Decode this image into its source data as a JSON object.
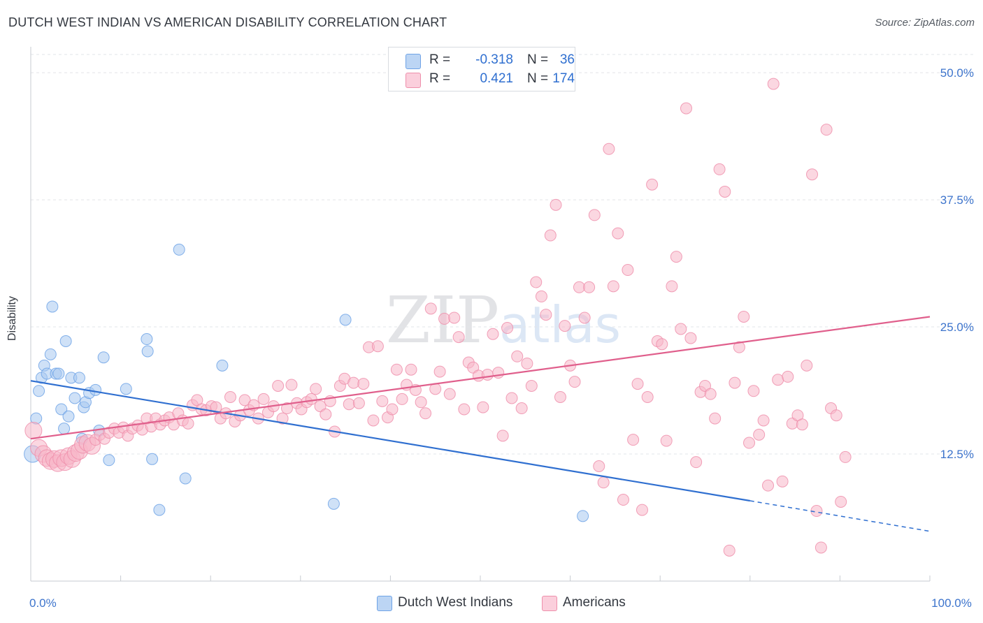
{
  "title": "DUTCH WEST INDIAN VS AMERICAN DISABILITY CORRELATION CHART",
  "source": "Source: ZipAtlas.com",
  "watermark": "ZIPatlas",
  "legend": {
    "rows": [
      {
        "r_label": "R =",
        "r_value": "-0.318",
        "n_label": "N =",
        "n_value": "36",
        "color": "#a8c8f0"
      },
      {
        "r_label": "R =",
        "r_value": "0.421",
        "n_label": "N =",
        "n_value": "174",
        "color": "#f7b6c8"
      }
    ]
  },
  "bottom_legend": [
    {
      "label": "Dutch West Indians",
      "color": "#a8c8f0"
    },
    {
      "label": "Americans",
      "color": "#f7b6c8"
    }
  ],
  "chart_data": {
    "type": "scatter",
    "title": "DUTCH WEST INDIAN VS AMERICAN DISABILITY CORRELATION CHART",
    "xlabel": "",
    "ylabel": "Disability",
    "xlim": [
      0,
      100
    ],
    "ylim": [
      0,
      52
    ],
    "x_tick_labels": [
      {
        "value": 0,
        "label": "0.0%"
      },
      {
        "value": 100,
        "label": "100.0%"
      }
    ],
    "y_tick_labels": [
      {
        "value": 12.5,
        "label": "12.5%"
      },
      {
        "value": 25.0,
        "label": "25.0%"
      },
      {
        "value": 37.5,
        "label": "37.5%"
      },
      {
        "value": 50.0,
        "label": "50.0%"
      }
    ],
    "grid": true,
    "series": [
      {
        "name": "Dutch West Indians",
        "color": "#6fa3e6",
        "fill": "#a8c8f0",
        "trend": {
          "x0": 0,
          "y0": 19.7,
          "x1": 80,
          "y1": 7.9,
          "x_dash_end": 100,
          "y_dash_end": 4.9,
          "color": "#2f6fd0"
        },
        "points": [
          [
            0.2,
            12.5
          ],
          [
            0.6,
            16.0
          ],
          [
            0.9,
            18.7
          ],
          [
            1.2,
            20.0
          ],
          [
            1.5,
            21.2
          ],
          [
            1.8,
            20.4
          ],
          [
            2.2,
            22.3
          ],
          [
            2.4,
            27.0
          ],
          [
            2.8,
            20.4
          ],
          [
            3.1,
            20.4
          ],
          [
            3.4,
            16.9
          ],
          [
            3.7,
            15.0
          ],
          [
            3.9,
            23.6
          ],
          [
            4.2,
            16.2
          ],
          [
            4.5,
            20.0
          ],
          [
            4.9,
            18.0
          ],
          [
            5.4,
            20.0
          ],
          [
            5.7,
            14.0
          ],
          [
            5.9,
            17.1
          ],
          [
            6.1,
            17.6
          ],
          [
            6.5,
            18.5
          ],
          [
            7.2,
            18.8
          ],
          [
            7.6,
            14.8
          ],
          [
            8.1,
            22.0
          ],
          [
            8.7,
            11.9
          ],
          [
            10.6,
            18.9
          ],
          [
            12.9,
            23.8
          ],
          [
            13.0,
            22.6
          ],
          [
            13.5,
            12.0
          ],
          [
            14.3,
            7.0
          ],
          [
            16.5,
            32.6
          ],
          [
            17.2,
            10.1
          ],
          [
            21.3,
            21.2
          ],
          [
            33.7,
            7.6
          ],
          [
            35.0,
            25.7
          ],
          [
            61.4,
            6.4
          ]
        ]
      },
      {
        "name": "Americans",
        "color": "#ee8fab",
        "fill": "#f7b6c8",
        "trend": {
          "x0": 0,
          "y0": 14.0,
          "x1": 100,
          "y1": 26.0,
          "color": "#e05f8c"
        },
        "points": [
          [
            0.3,
            14.8
          ],
          [
            0.9,
            13.1
          ],
          [
            1.4,
            12.5
          ],
          [
            1.8,
            12.1
          ],
          [
            2.2,
            11.8
          ],
          [
            2.6,
            12.0
          ],
          [
            3.0,
            11.6
          ],
          [
            3.4,
            12.1
          ],
          [
            3.8,
            11.7
          ],
          [
            4.2,
            12.3
          ],
          [
            4.6,
            12.0
          ],
          [
            5.0,
            12.6
          ],
          [
            5.4,
            12.8
          ],
          [
            5.8,
            13.4
          ],
          [
            6.3,
            13.6
          ],
          [
            6.8,
            13.3
          ],
          [
            7.2,
            13.9
          ],
          [
            7.7,
            14.4
          ],
          [
            8.2,
            14.0
          ],
          [
            8.7,
            14.6
          ],
          [
            9.3,
            15.0
          ],
          [
            9.8,
            14.6
          ],
          [
            10.3,
            15.1
          ],
          [
            10.8,
            14.3
          ],
          [
            11.3,
            15.0
          ],
          [
            11.9,
            15.3
          ],
          [
            12.4,
            14.9
          ],
          [
            12.9,
            16.0
          ],
          [
            13.4,
            15.2
          ],
          [
            13.9,
            16.0
          ],
          [
            14.4,
            15.4
          ],
          [
            14.9,
            15.8
          ],
          [
            15.4,
            16.1
          ],
          [
            15.9,
            15.4
          ],
          [
            16.4,
            16.5
          ],
          [
            16.9,
            15.8
          ],
          [
            17.5,
            15.5
          ],
          [
            18.0,
            17.3
          ],
          [
            18.5,
            17.8
          ],
          [
            19.0,
            16.9
          ],
          [
            19.5,
            16.8
          ],
          [
            20.1,
            17.2
          ],
          [
            20.6,
            17.1
          ],
          [
            21.1,
            16.0
          ],
          [
            21.7,
            16.5
          ],
          [
            22.2,
            18.1
          ],
          [
            22.7,
            15.7
          ],
          [
            23.3,
            16.3
          ],
          [
            23.8,
            17.8
          ],
          [
            24.3,
            16.8
          ],
          [
            24.8,
            17.3
          ],
          [
            25.3,
            16.0
          ],
          [
            25.9,
            17.9
          ],
          [
            26.4,
            16.6
          ],
          [
            27.0,
            17.2
          ],
          [
            27.5,
            19.2
          ],
          [
            28.0,
            16.0
          ],
          [
            28.5,
            17.0
          ],
          [
            29.0,
            19.3
          ],
          [
            29.6,
            17.5
          ],
          [
            30.1,
            16.9
          ],
          [
            30.7,
            17.6
          ],
          [
            31.2,
            17.9
          ],
          [
            31.7,
            18.9
          ],
          [
            32.2,
            17.2
          ],
          [
            32.8,
            16.4
          ],
          [
            33.3,
            17.7
          ],
          [
            33.8,
            14.7
          ],
          [
            34.4,
            19.2
          ],
          [
            34.9,
            19.9
          ],
          [
            35.4,
            17.4
          ],
          [
            35.9,
            19.5
          ],
          [
            36.5,
            17.5
          ],
          [
            37.0,
            19.4
          ],
          [
            37.6,
            23.0
          ],
          [
            38.1,
            15.8
          ],
          [
            38.6,
            23.1
          ],
          [
            39.1,
            17.7
          ],
          [
            39.7,
            16.1
          ],
          [
            40.2,
            16.9
          ],
          [
            40.7,
            20.8
          ],
          [
            41.3,
            17.9
          ],
          [
            41.8,
            19.3
          ],
          [
            42.3,
            20.8
          ],
          [
            42.8,
            18.8
          ],
          [
            43.4,
            17.6
          ],
          [
            43.9,
            16.5
          ],
          [
            44.5,
            26.8
          ],
          [
            45.0,
            18.9
          ],
          [
            45.5,
            20.6
          ],
          [
            46.0,
            25.8
          ],
          [
            46.6,
            18.4
          ],
          [
            47.1,
            25.9
          ],
          [
            47.6,
            24.0
          ],
          [
            48.2,
            16.9
          ],
          [
            48.7,
            21.5
          ],
          [
            49.2,
            21.0
          ],
          [
            49.8,
            20.2
          ],
          [
            50.3,
            17.1
          ],
          [
            50.8,
            20.3
          ],
          [
            51.4,
            24.3
          ],
          [
            52.0,
            20.5
          ],
          [
            52.5,
            14.3
          ],
          [
            53.0,
            24.9
          ],
          [
            53.5,
            18.0
          ],
          [
            54.1,
            22.1
          ],
          [
            54.6,
            17.0
          ],
          [
            55.2,
            21.4
          ],
          [
            55.7,
            19.2
          ],
          [
            56.2,
            29.4
          ],
          [
            56.8,
            28.0
          ],
          [
            57.3,
            26.2
          ],
          [
            57.8,
            34.0
          ],
          [
            58.4,
            37.0
          ],
          [
            58.9,
            18.1
          ],
          [
            59.4,
            25.1
          ],
          [
            60.0,
            21.2
          ],
          [
            60.5,
            19.6
          ],
          [
            61.0,
            28.9
          ],
          [
            61.6,
            25.9
          ],
          [
            62.1,
            28.9
          ],
          [
            62.7,
            36.0
          ],
          [
            63.2,
            11.3
          ],
          [
            63.7,
            9.7
          ],
          [
            64.3,
            42.5
          ],
          [
            64.8,
            29.0
          ],
          [
            65.3,
            34.2
          ],
          [
            65.9,
            8.0
          ],
          [
            66.4,
            30.6
          ],
          [
            67.0,
            13.9
          ],
          [
            67.5,
            19.4
          ],
          [
            68.0,
            7.0
          ],
          [
            68.6,
            18.1
          ],
          [
            69.1,
            39.0
          ],
          [
            69.7,
            23.6
          ],
          [
            70.2,
            23.3
          ],
          [
            70.7,
            13.8
          ],
          [
            71.3,
            29.0
          ],
          [
            71.8,
            31.9
          ],
          [
            72.3,
            24.8
          ],
          [
            72.9,
            46.5
          ],
          [
            73.4,
            23.9
          ],
          [
            74.0,
            11.7
          ],
          [
            74.5,
            18.6
          ],
          [
            75.0,
            19.2
          ],
          [
            75.6,
            18.4
          ],
          [
            76.1,
            16.0
          ],
          [
            76.6,
            40.5
          ],
          [
            77.2,
            38.3
          ],
          [
            77.7,
            3.0
          ],
          [
            78.3,
            19.5
          ],
          [
            78.8,
            23.0
          ],
          [
            79.3,
            26.0
          ],
          [
            79.9,
            13.6
          ],
          [
            80.4,
            18.7
          ],
          [
            81.0,
            14.4
          ],
          [
            81.5,
            15.8
          ],
          [
            82.0,
            9.4
          ],
          [
            82.6,
            48.9
          ],
          [
            83.1,
            19.8
          ],
          [
            83.6,
            9.8
          ],
          [
            84.2,
            20.1
          ],
          [
            84.7,
            15.5
          ],
          [
            85.3,
            16.3
          ],
          [
            85.8,
            15.4
          ],
          [
            86.3,
            21.2
          ],
          [
            86.9,
            40.0
          ],
          [
            87.4,
            6.9
          ],
          [
            87.9,
            3.3
          ],
          [
            88.5,
            44.4
          ],
          [
            89.0,
            17.0
          ],
          [
            89.6,
            16.3
          ],
          [
            90.1,
            7.8
          ],
          [
            90.6,
            12.2
          ]
        ]
      }
    ]
  }
}
